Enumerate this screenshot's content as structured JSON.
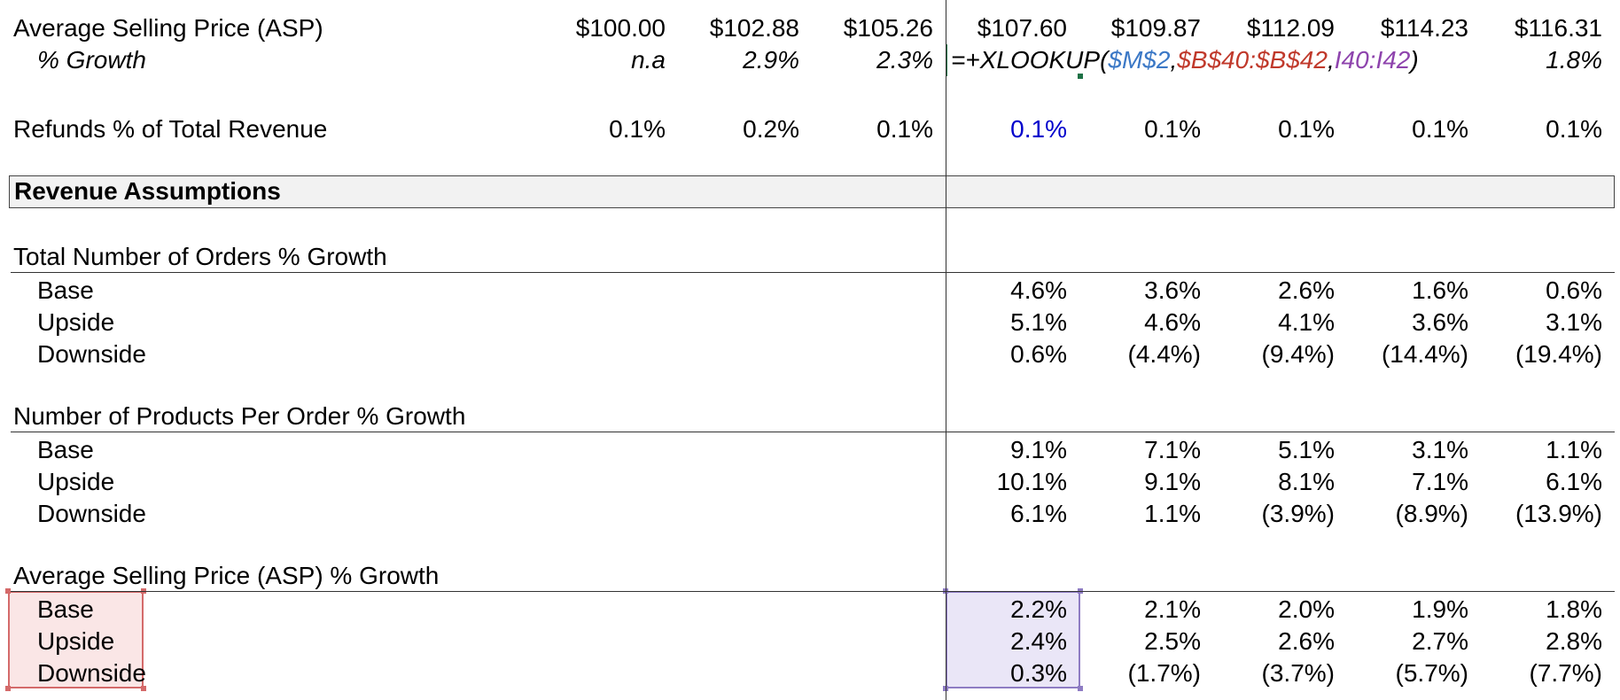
{
  "asp_row": {
    "label": "Average Selling Price (ASP)",
    "values": [
      "$100.00",
      "$102.88",
      "$105.26",
      "$107.60",
      "$109.87",
      "$112.09",
      "$114.23",
      "$116.31"
    ]
  },
  "growth_row": {
    "label": "% Growth",
    "values": [
      "n.a",
      "2.9%",
      "2.3%",
      "",
      "",
      "",
      "",
      "1.8%"
    ]
  },
  "formula": {
    "prefix": "=+XLOOKUP(",
    "arg1": "$M$2",
    "sep1": ",",
    "arg2": "$B$40:$B$42",
    "sep2": ",",
    "arg3": "I40:I42",
    "suffix": ")"
  },
  "refunds_row": {
    "label": "Refunds % of Total Revenue",
    "values": [
      "0.1%",
      "0.2%",
      "0.1%",
      "0.1%",
      "0.1%",
      "0.1%",
      "0.1%",
      "0.1%"
    ]
  },
  "section_header": {
    "label": "Revenue Assumptions"
  },
  "groups": [
    {
      "title": "Total Number of Orders % Growth",
      "rows": [
        {
          "label": "Base",
          "values": [
            "4.6%",
            "3.6%",
            "2.6%",
            "1.6%",
            "0.6%"
          ]
        },
        {
          "label": "Upside",
          "values": [
            "5.1%",
            "4.6%",
            "4.1%",
            "3.6%",
            "3.1%"
          ]
        },
        {
          "label": "Downside",
          "values": [
            "0.6%",
            "(4.4%)",
            "(9.4%)",
            "(14.4%)",
            "(19.4%)"
          ]
        }
      ]
    },
    {
      "title": "Number of Products Per Order % Growth",
      "rows": [
        {
          "label": "Base",
          "values": [
            "9.1%",
            "7.1%",
            "5.1%",
            "3.1%",
            "1.1%"
          ]
        },
        {
          "label": "Upside",
          "values": [
            "10.1%",
            "9.1%",
            "8.1%",
            "7.1%",
            "6.1%"
          ]
        },
        {
          "label": "Downside",
          "values": [
            "6.1%",
            "1.1%",
            "(3.9%)",
            "(8.9%)",
            "(13.9%)"
          ]
        }
      ]
    },
    {
      "title": "Average Selling Price (ASP) % Growth",
      "rows": [
        {
          "label": "Base",
          "values": [
            "2.2%",
            "2.1%",
            "2.0%",
            "1.9%",
            "1.8%"
          ]
        },
        {
          "label": "Upside",
          "values": [
            "2.4%",
            "2.5%",
            "2.6%",
            "2.7%",
            "2.8%"
          ]
        },
        {
          "label": "Downside",
          "values": [
            "0.3%",
            "(1.7%)",
            "(3.7%)",
            "(5.7%)",
            "(7.7%)"
          ]
        }
      ]
    }
  ],
  "colors": {
    "input_blue": "#0000cc",
    "formula_ref_blue": "#3b78c6",
    "formula_ref_red": "#c0392b",
    "formula_ref_purple": "#8e44ad",
    "active_cell_border": "#1e7145",
    "section_fill": "#f2f2f2"
  }
}
